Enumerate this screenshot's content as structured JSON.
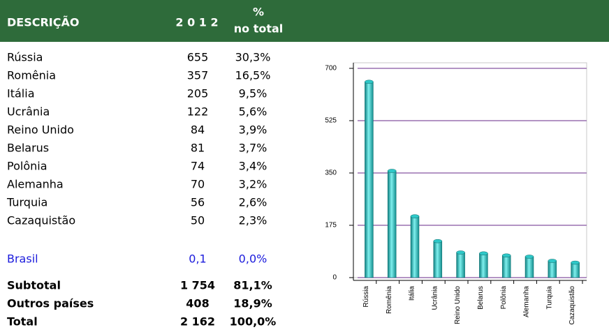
{
  "table": {
    "header": [
      "DESCRIÇÃO",
      "2 0 1 2",
      "%",
      "no total"
    ],
    "rows": [
      [
        "Rússia",
        "655",
        "30,3%"
      ],
      [
        "Romênia",
        "357",
        "16,5%"
      ],
      [
        "Itália",
        "205",
        "9,5%"
      ],
      [
        "Ucrânia",
        "122",
        "5,6%"
      ],
      [
        "Reino Unido",
        "84",
        "3,9%"
      ],
      [
        "Belarus",
        "81",
        "3,7%"
      ],
      [
        "Polônia",
        "74",
        "3,4%"
      ],
      [
        "Alemanha",
        "70",
        "3,2%"
      ],
      [
        "Turquia",
        "56",
        "2,6%"
      ],
      [
        "Cazaquistão",
        "50",
        "2,3%"
      ]
    ],
    "highlight": [
      "Brasil",
      "0,1",
      "0,0%"
    ],
    "totals": [
      [
        "Subtotal",
        "1 754",
        "81,1%"
      ],
      [
        "Outros países",
        "408",
        "18,9%"
      ],
      [
        "Total",
        "2 162",
        "100,0%"
      ]
    ]
  },
  "chart_data": {
    "type": "bar",
    "categories": [
      "Rússia",
      "Romênia",
      "Itália",
      "Ucrânia",
      "Reino Unido",
      "Belarus",
      "Polônia",
      "Alemanha",
      "Turquia",
      "Cazaquistão"
    ],
    "values": [
      655,
      357,
      205,
      122,
      84,
      81,
      74,
      70,
      56,
      50
    ],
    "color": "#2ec8c8",
    "ylim": [
      0,
      700
    ],
    "yticks": [
      0,
      175,
      350,
      525,
      700
    ],
    "grid": true
  }
}
